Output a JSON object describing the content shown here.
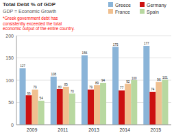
{
  "chart_data": {
    "type": "bar",
    "title": "Total Debt % of GDP",
    "subtitle": "GDP = Economic Growth",
    "annotation": "*Greek government debt has\nconsistently exceeded the total\neconomic output of the entire country.",
    "categories": [
      "2009",
      "2011",
      "2013",
      "2014",
      "2015"
    ],
    "series": [
      {
        "name": "Greece",
        "color": "#8ab4d8",
        "values": [
          127,
          108,
          156,
          175,
          177
        ]
      },
      {
        "name": "Germany",
        "color": "#cc1111",
        "values": [
          66,
          80,
          79,
          77,
          74
        ]
      },
      {
        "name": "France",
        "color": "#f0c090",
        "values": [
          79,
          85,
          89,
          92,
          96
        ]
      },
      {
        "name": "Spain",
        "color": "#b8d8a0",
        "values": [
          54,
          70,
          94,
          100,
          101
        ]
      }
    ],
    "ylim": [
      0,
      200
    ],
    "yticks": [
      0,
      50,
      100,
      150,
      200
    ],
    "grid": true,
    "legend": "top-right",
    "data_labels": true
  }
}
